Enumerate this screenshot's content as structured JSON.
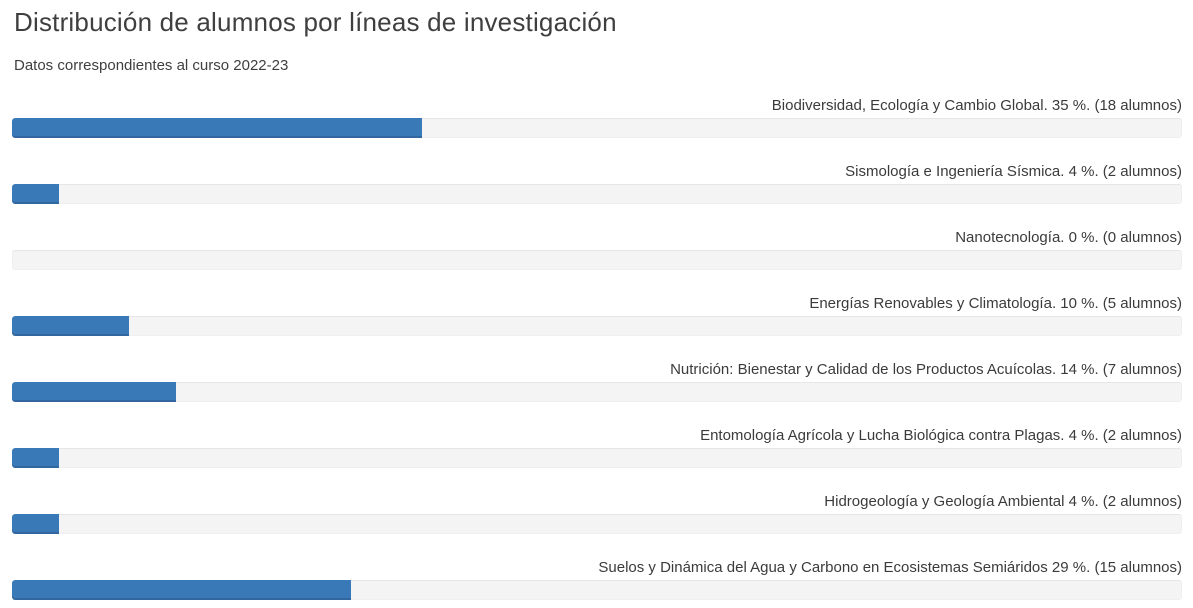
{
  "header": {
    "title": "Distribución de alumnos por líneas de investigación",
    "subtitle": "Datos correspondientes al curso 2022-23"
  },
  "colors": {
    "bar_fill": "#3a79b8",
    "bar_track": "#f4f4f4",
    "text": "#3f3f3f"
  },
  "chart_data": {
    "type": "bar",
    "orientation": "horizontal",
    "title": "Distribución de alumnos por líneas de investigación",
    "subtitle": "Datos correspondientes al curso 2022-23",
    "xlabel": "",
    "ylabel": "",
    "xlim": [
      0,
      100
    ],
    "unit_percent": "%",
    "unit_count": "alumnos",
    "grid": false,
    "legend": false,
    "categories": [
      "Biodiversidad, Ecología y Cambio Global",
      "Sismología e Ingeniería Sísmica",
      "Nanotecnología",
      "Energías Renovables y Climatología",
      "Nutrición: Bienestar y Calidad de los Productos Acuícolas",
      "Entomología Agrícola y Lucha Biológica contra Plagas",
      "Hidrogeología y Geología Ambiental",
      "Suelos y Dinámica del Agua y Carbono en Ecosistemas Semiáridos"
    ],
    "values": [
      35,
      4,
      0,
      10,
      14,
      4,
      4,
      29
    ],
    "counts_alumnos": [
      18,
      2,
      0,
      5,
      7,
      2,
      2,
      15
    ],
    "bar_labels": [
      "Biodiversidad, Ecología y Cambio Global. 35 %. (18 alumnos)",
      "Sismología e Ingeniería Sísmica. 4 %. (2 alumnos)",
      "Nanotecnología. 0 %. (0 alumnos)",
      "Energías Renovables y Climatología. 10 %. (5 alumnos)",
      "Nutrición: Bienestar y Calidad de los Productos Acuícolas. 14 %. (7 alumnos)",
      "Entomología Agrícola y Lucha Biológica contra Plagas. 4 %. (2 alumnos)",
      "Hidrogeología y Geología Ambiental 4 %. (2 alumnos)",
      "Suelos y Dinámica del Agua y Carbono en Ecosistemas Semiáridos 29 %. (15 alumnos)"
    ]
  }
}
